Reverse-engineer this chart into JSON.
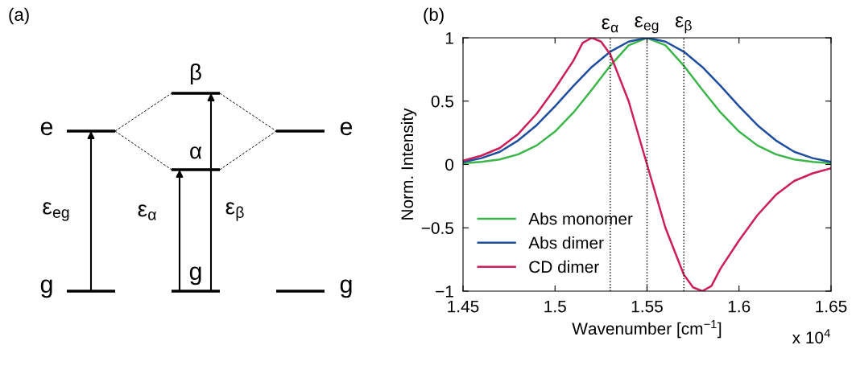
{
  "chart_data": [
    {
      "type": "other",
      "title": "(a)",
      "annotations": [
        "e",
        "g",
        "β",
        "α",
        "g",
        "e",
        "g",
        "ε$_{eg}$",
        "ε$_{α}$",
        "ε$_{β}$"
      ]
    },
    {
      "type": "line",
      "title": "(b)",
      "xlabel": "Wavenumber [cm$^{−1}$]",
      "ylabel": "Norm. Intensity",
      "annotations": [
        "x 10$^{4}$"
      ],
      "xlim": [
        1.45,
        1.65
      ],
      "xticks": [
        1.45,
        1.5,
        1.55,
        1.6,
        1.65
      ],
      "ylim": [
        -1,
        1
      ],
      "yticks": [
        {
          "value": -1,
          "label": "−1"
        },
        {
          "value": -0.5,
          "label": "−0.5"
        },
        0,
        0.5,
        1
      ],
      "grid": false,
      "legend": "bottom left",
      "line_style": "solid",
      "marker": "none",
      "series": [
        {
          "name": "Abs monomer",
          "color": "#3cb54a",
          "x": [
            1.45,
            1.46,
            1.47,
            1.48,
            1.49,
            1.5,
            1.51,
            1.52,
            1.53,
            1.54,
            1.55,
            1.56,
            1.57,
            1.58,
            1.59,
            1.6,
            1.61,
            1.62,
            1.63,
            1.64,
            1.65
          ],
          "values": [
            0.01,
            0.02,
            0.04,
            0.08,
            0.15,
            0.26,
            0.41,
            0.59,
            0.78,
            0.94,
            1.0,
            0.94,
            0.78,
            0.59,
            0.41,
            0.26,
            0.15,
            0.08,
            0.04,
            0.02,
            0.01
          ]
        },
        {
          "name": "Abs dimer",
          "color": "#1f4e9f",
          "x": [
            1.45,
            1.46,
            1.47,
            1.48,
            1.49,
            1.5,
            1.51,
            1.52,
            1.53,
            1.54,
            1.55,
            1.56,
            1.57,
            1.58,
            1.59,
            1.6,
            1.61,
            1.62,
            1.63,
            1.64,
            1.65
          ],
          "values": [
            0.02,
            0.05,
            0.1,
            0.19,
            0.31,
            0.46,
            0.62,
            0.77,
            0.89,
            0.97,
            1.0,
            0.97,
            0.89,
            0.77,
            0.62,
            0.46,
            0.31,
            0.19,
            0.1,
            0.05,
            0.02
          ]
        },
        {
          "name": "CD dimer",
          "color": "#cc1f5a",
          "x": [
            1.45,
            1.46,
            1.47,
            1.48,
            1.49,
            1.5,
            1.51,
            1.515,
            1.52,
            1.525,
            1.53,
            1.54,
            1.55,
            1.56,
            1.57,
            1.575,
            1.58,
            1.585,
            1.59,
            1.6,
            1.61,
            1.62,
            1.63,
            1.64,
            1.65
          ],
          "values": [
            0.03,
            0.07,
            0.13,
            0.24,
            0.4,
            0.6,
            0.82,
            0.96,
            1.0,
            0.97,
            0.87,
            0.5,
            0.0,
            -0.5,
            -0.87,
            -0.97,
            -1.0,
            -0.96,
            -0.82,
            -0.6,
            -0.4,
            -0.24,
            -0.13,
            -0.07,
            -0.03
          ]
        }
      ],
      "ref_lines": [
        {
          "axis": "x",
          "value": 1.53,
          "label": "ε$_{α}$",
          "color": "#000000",
          "line_style": "dotted"
        },
        {
          "axis": "x",
          "value": 1.55,
          "label": "ε$_{eg}$",
          "color": "#000000",
          "line_style": "dotted"
        },
        {
          "axis": "x",
          "value": 1.57,
          "label": "ε$_{β}$",
          "color": "#000000",
          "line_style": "dotted"
        }
      ]
    }
  ]
}
